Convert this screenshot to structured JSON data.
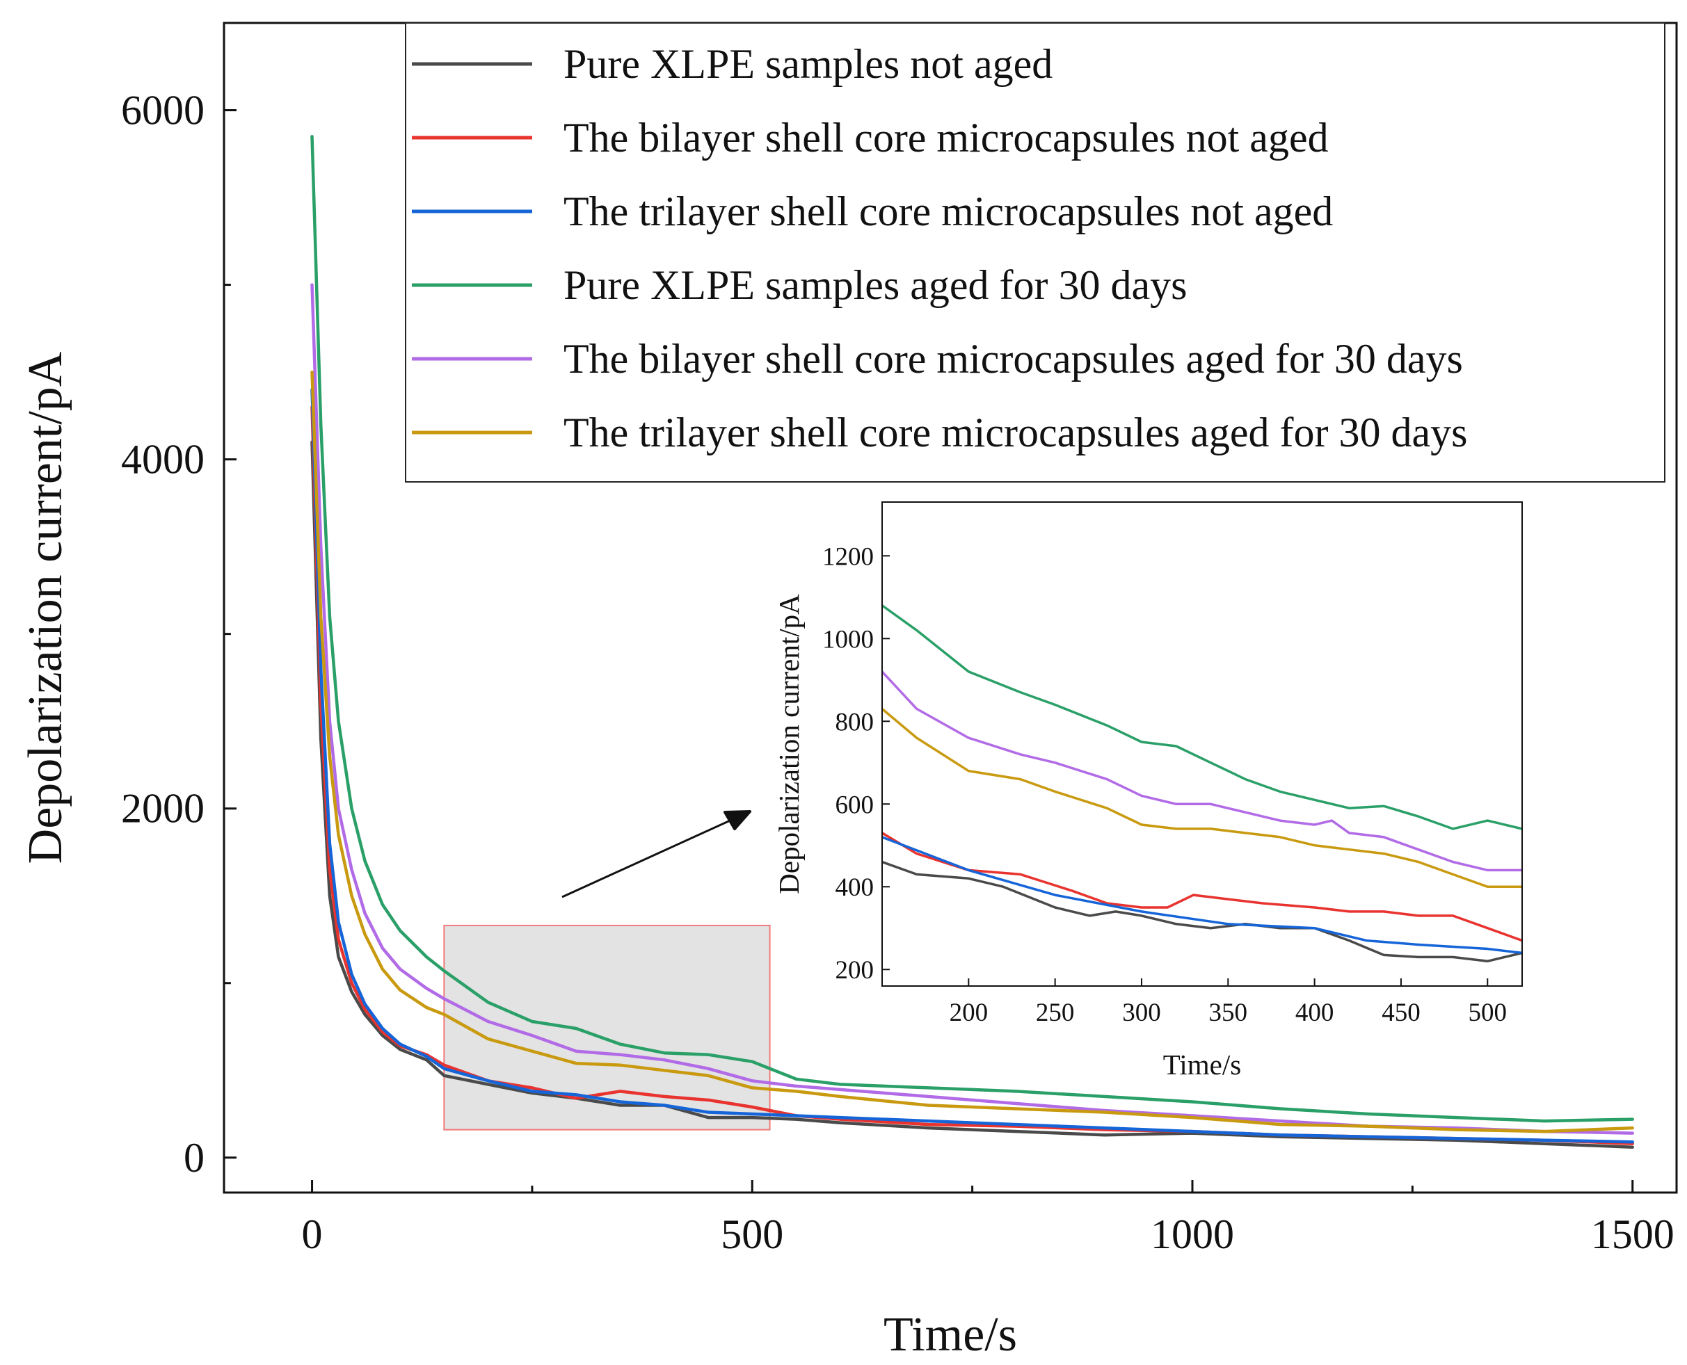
{
  "chart_data": [
    {
      "type": "line",
      "role": "main",
      "xlabel": "Time/s",
      "ylabel": "Depolarization current/pA",
      "xlim": [
        -100,
        1550
      ],
      "ylim": [
        -200,
        6500
      ],
      "xticks": [
        0,
        500,
        1000,
        1500
      ],
      "xtick_labels": [
        "0",
        "500",
        "1000",
        "1500"
      ],
      "xminor": [
        250,
        750,
        1250
      ],
      "yticks": [
        0,
        2000,
        4000,
        6000
      ],
      "ytick_labels": [
        "0",
        "2000",
        "4000",
        "6000"
      ],
      "yminor": [
        1000,
        3000,
        5000
      ],
      "legend_position": "top-right",
      "series": [
        {
          "name": "Pure XLPE samples not aged",
          "color": "#4a4a4a",
          "x": [
            0,
            10,
            20,
            30,
            45,
            60,
            80,
            100,
            130,
            150,
            200,
            250,
            300,
            350,
            400,
            450,
            500,
            550,
            600,
            700,
            800,
            900,
            1000,
            1100,
            1200,
            1300,
            1400,
            1500
          ],
          "y": [
            4100,
            2400,
            1500,
            1150,
            950,
            820,
            700,
            620,
            560,
            470,
            420,
            370,
            340,
            300,
            300,
            230,
            230,
            220,
            200,
            170,
            150,
            130,
            140,
            120,
            110,
            100,
            80,
            60
          ]
        },
        {
          "name": "The bilayer shell core microcapsules not aged",
          "color": "#e8332f",
          "x": [
            0,
            10,
            20,
            30,
            45,
            60,
            80,
            100,
            130,
            150,
            200,
            250,
            300,
            350,
            400,
            450,
            500,
            550,
            600,
            700,
            800,
            900,
            1000,
            1100,
            1200,
            1300,
            1400,
            1500
          ],
          "y": [
            4300,
            2600,
            1650,
            1250,
            1000,
            850,
            720,
            640,
            590,
            530,
            440,
            400,
            340,
            380,
            350,
            330,
            290,
            240,
            220,
            190,
            180,
            160,
            150,
            130,
            120,
            110,
            100,
            80
          ]
        },
        {
          "name": "The trilayer shell core microcapsules not aged",
          "color": "#1565d8",
          "x": [
            0,
            10,
            20,
            30,
            45,
            60,
            80,
            100,
            130,
            150,
            200,
            250,
            300,
            350,
            400,
            450,
            500,
            550,
            600,
            700,
            800,
            900,
            1000,
            1100,
            1200,
            1300,
            1400,
            1500
          ],
          "y": [
            4400,
            2800,
            1800,
            1350,
            1050,
            880,
            740,
            650,
            580,
            510,
            440,
            380,
            360,
            320,
            300,
            260,
            250,
            240,
            230,
            210,
            190,
            170,
            150,
            130,
            120,
            110,
            100,
            90
          ]
        },
        {
          "name": "Pure XLPE samples aged for 30 days",
          "color": "#2aa068",
          "x": [
            0,
            10,
            20,
            30,
            45,
            60,
            80,
            100,
            130,
            150,
            200,
            250,
            300,
            350,
            400,
            450,
            500,
            550,
            600,
            700,
            800,
            900,
            1000,
            1100,
            1200,
            1300,
            1400,
            1500
          ],
          "y": [
            5850,
            4200,
            3100,
            2500,
            2000,
            1700,
            1450,
            1300,
            1150,
            1070,
            890,
            780,
            740,
            650,
            600,
            590,
            550,
            450,
            420,
            400,
            380,
            350,
            320,
            280,
            250,
            230,
            210,
            220
          ]
        },
        {
          "name": "The bilayer shell core microcapsules aged for 30 days",
          "color": "#b26be6",
          "x": [
            0,
            10,
            20,
            30,
            45,
            60,
            80,
            100,
            130,
            150,
            200,
            250,
            300,
            350,
            400,
            450,
            500,
            550,
            600,
            700,
            800,
            900,
            1000,
            1100,
            1200,
            1300,
            1400,
            1500
          ],
          "y": [
            5000,
            3500,
            2500,
            2000,
            1650,
            1400,
            1200,
            1080,
            970,
            910,
            780,
            700,
            610,
            590,
            560,
            510,
            440,
            410,
            390,
            350,
            310,
            270,
            240,
            210,
            180,
            170,
            150,
            140
          ]
        },
        {
          "name": "The trilayer shell core microcapsules aged  for 30 days",
          "color": "#c99a10",
          "x": [
            0,
            10,
            20,
            30,
            45,
            60,
            80,
            100,
            130,
            150,
            200,
            250,
            300,
            350,
            400,
            450,
            500,
            550,
            600,
            700,
            800,
            900,
            1000,
            1100,
            1200,
            1300,
            1400,
            1500
          ],
          "y": [
            4500,
            3100,
            2300,
            1850,
            1500,
            1280,
            1080,
            960,
            860,
            820,
            680,
            610,
            540,
            530,
            500,
            470,
            400,
            380,
            350,
            300,
            280,
            260,
            230,
            190,
            180,
            160,
            150,
            170
          ]
        }
      ]
    },
    {
      "type": "line",
      "role": "inset",
      "xlabel": "Time/s",
      "ylabel": "Depolarization current/pA",
      "xlim": [
        150,
        520
      ],
      "ylim": [
        160,
        1330
      ],
      "xticks": [
        200,
        250,
        300,
        350,
        400,
        450,
        500
      ],
      "xtick_labels": [
        "200",
        "250",
        "300",
        "350",
        "400",
        "450",
        "500"
      ],
      "yticks": [
        200,
        400,
        600,
        800,
        1000,
        1200
      ],
      "ytick_labels": [
        "200",
        "400",
        "600",
        "800",
        "1000",
        "1200"
      ],
      "series": [
        {
          "name": "Pure XLPE samples not aged",
          "color": "#4a4a4a",
          "x": [
            150,
            170,
            200,
            220,
            250,
            270,
            285,
            300,
            320,
            340,
            360,
            380,
            400,
            420,
            440,
            460,
            480,
            500,
            520
          ],
          "y": [
            460,
            430,
            420,
            400,
            350,
            330,
            340,
            330,
            310,
            300,
            310,
            300,
            300,
            270,
            235,
            230,
            230,
            220,
            240
          ]
        },
        {
          "name": "The bilayer shell core microcapsules not aged",
          "color": "#e8332f",
          "x": [
            150,
            170,
            200,
            230,
            260,
            280,
            300,
            315,
            330,
            350,
            370,
            400,
            420,
            440,
            460,
            480,
            500,
            520
          ],
          "y": [
            530,
            480,
            440,
            430,
            390,
            360,
            350,
            350,
            380,
            370,
            360,
            350,
            340,
            340,
            330,
            330,
            300,
            270
          ]
        },
        {
          "name": "The trilayer shell core microcapsules not aged",
          "color": "#1565d8",
          "x": [
            150,
            200,
            250,
            300,
            350,
            400,
            430,
            460,
            500,
            520
          ],
          "y": [
            520,
            440,
            380,
            340,
            310,
            300,
            270,
            260,
            250,
            240
          ]
        },
        {
          "name": "Pure XLPE samples aged for 30 days",
          "color": "#2aa068",
          "x": [
            150,
            170,
            200,
            230,
            250,
            280,
            300,
            320,
            340,
            360,
            380,
            400,
            420,
            440,
            460,
            480,
            500,
            520
          ],
          "y": [
            1080,
            1020,
            920,
            870,
            840,
            790,
            750,
            740,
            700,
            660,
            630,
            610,
            590,
            595,
            570,
            540,
            560,
            540
          ]
        },
        {
          "name": "The bilayer shell core microcapsules aged for 30 days",
          "color": "#b26be6",
          "x": [
            150,
            170,
            200,
            230,
            250,
            280,
            300,
            320,
            340,
            360,
            380,
            400,
            410,
            420,
            440,
            460,
            480,
            500,
            520
          ],
          "y": [
            920,
            830,
            760,
            720,
            700,
            660,
            620,
            600,
            600,
            580,
            560,
            550,
            560,
            530,
            520,
            490,
            460,
            440,
            440
          ]
        },
        {
          "name": "The trilayer shell core microcapsules aged  for 30 days",
          "color": "#c99a10",
          "x": [
            150,
            170,
            200,
            230,
            250,
            280,
            300,
            320,
            340,
            360,
            380,
            400,
            420,
            440,
            460,
            480,
            500,
            520
          ],
          "y": [
            830,
            760,
            680,
            660,
            630,
            590,
            550,
            540,
            540,
            530,
            520,
            500,
            490,
            480,
            460,
            430,
            400,
            400
          ]
        }
      ]
    }
  ]
}
